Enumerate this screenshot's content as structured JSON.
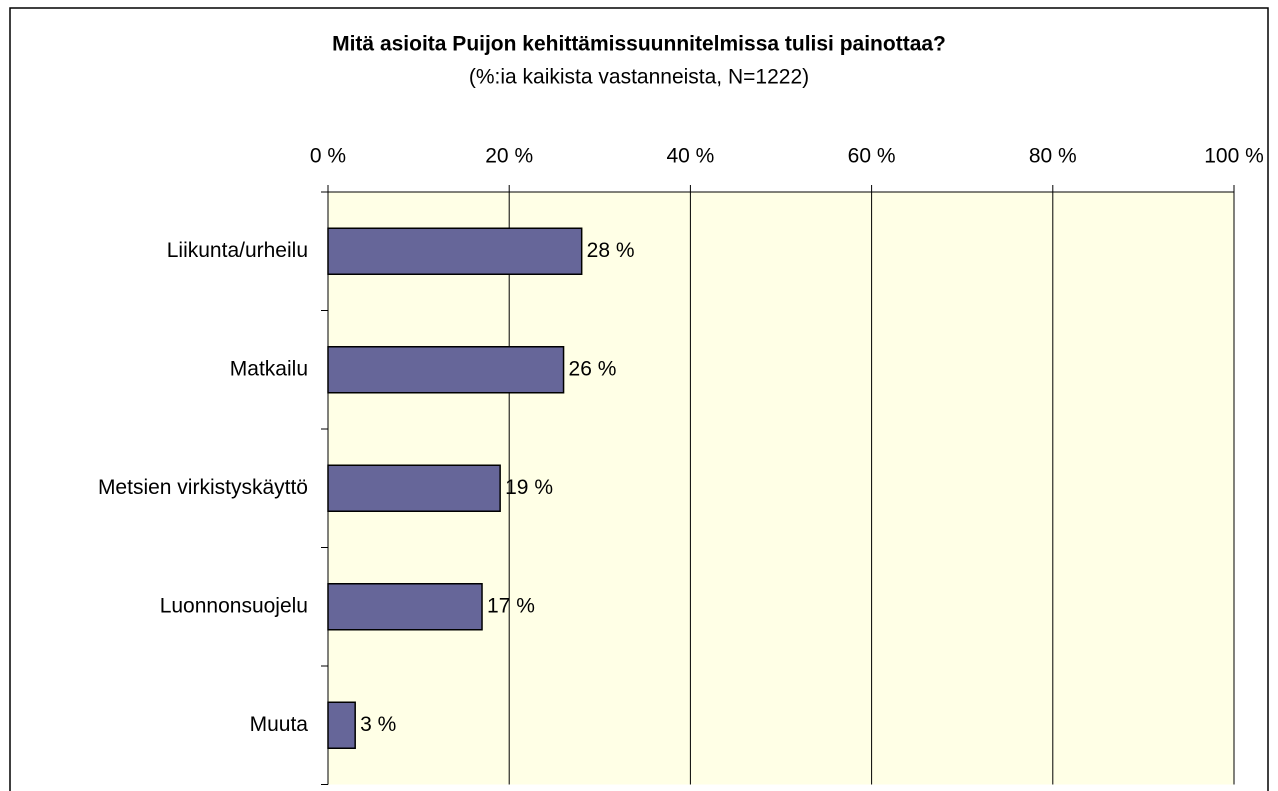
{
  "chart_data": {
    "type": "bar",
    "orientation": "horizontal",
    "title": "Mitä asioita Puijon kehittämissuunnitelmissa tulisi painottaa?",
    "subtitle": "(%:ia kaikista vastanneista, N=1222)",
    "categories": [
      "Liikunta/urheilu",
      "Matkailu",
      "Metsien virkistyskäyttö",
      "Luonnonsuojelu",
      "Muuta"
    ],
    "values": [
      28,
      26,
      19,
      17,
      3
    ],
    "value_labels": [
      "28 %",
      "26 %",
      "19 %",
      "17 %",
      "3 %"
    ],
    "color": "#666699",
    "xlim": [
      0,
      100
    ],
    "xticks": [
      {
        "value": 0,
        "label": "0 %"
      },
      {
        "value": 20,
        "label": "20 %"
      },
      {
        "value": 40,
        "label": "40 %"
      },
      {
        "value": 60,
        "label": "60 %"
      },
      {
        "value": 80,
        "label": "80 %"
      },
      {
        "value": 100,
        "label": "100 %"
      }
    ],
    "grid": true,
    "plot_background": "#ffffe6"
  }
}
